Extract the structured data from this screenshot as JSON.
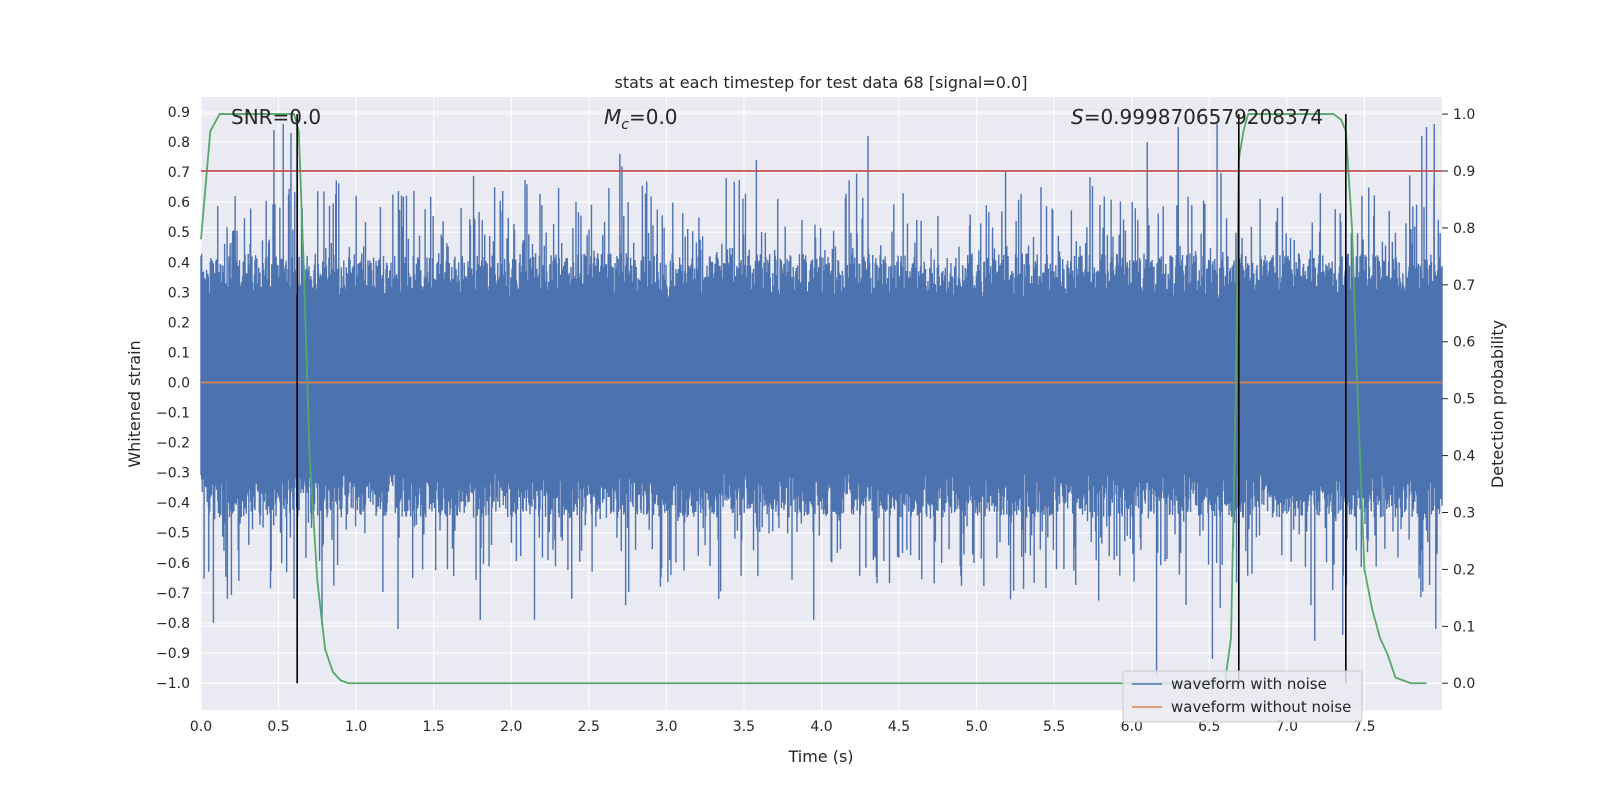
{
  "chart_data": {
    "type": "line",
    "title": "stats at each timestep for test data 68 [signal=0.0]",
    "xlabel": "Time (s)",
    "ylabel_left": "Whitened strain",
    "ylabel_right": "Detection probability",
    "xlim": [
      0.0,
      8.0
    ],
    "ylim_left": [
      -1.09,
      0.95
    ],
    "ylim_right": [
      -0.047,
      1.03
    ],
    "x_ticks": [
      "0.0",
      "0.5",
      "1.0",
      "1.5",
      "2.0",
      "2.5",
      "3.0",
      "3.5",
      "4.0",
      "4.5",
      "5.0",
      "5.5",
      "6.0",
      "6.5",
      "7.0",
      "7.5"
    ],
    "y_left_ticks": [
      "0.9",
      "0.8",
      "0.7",
      "0.6",
      "0.5",
      "0.4",
      "0.3",
      "0.2",
      "0.1",
      "0.0",
      "−0.1",
      "−0.2",
      "−0.3",
      "−0.4",
      "−0.5",
      "−0.6",
      "−0.7",
      "−0.8",
      "−0.9",
      "−1.0"
    ],
    "y_right_ticks": [
      "1.0",
      "0.9",
      "0.8",
      "0.7",
      "0.6",
      "0.5",
      "0.4",
      "0.3",
      "0.2",
      "0.1",
      "0.0"
    ],
    "grid": true,
    "legend": {
      "position": "lower-right",
      "entries": [
        {
          "label": "waveform with noise",
          "color": "#4c72b0"
        },
        {
          "label": "waveform without noise",
          "color": "#dd8452"
        }
      ]
    },
    "annotations": {
      "snr": "SNR=0.0",
      "mc_symbol": "M",
      "mc_sub": "c",
      "mc_value": "=0.0",
      "s_symbol": "S",
      "s_value": "=0.9998706579208374"
    },
    "series": [
      {
        "name": "waveform with noise",
        "color": "#4c72b0",
        "note": "dense whitened noise, core approx ±0.3 with peaks up to about 0.85 and troughs to about −0.92",
        "peaks": [
          {
            "x": 0.05,
            "y": -0.63
          },
          {
            "x": 0.08,
            "y": -0.8
          },
          {
            "x": 0.17,
            "y": -0.72
          },
          {
            "x": 0.47,
            "y": 0.84
          },
          {
            "x": 0.53,
            "y": 0.86
          },
          {
            "x": 0.58,
            "y": 0.83
          },
          {
            "x": 0.6,
            "y": -0.72
          },
          {
            "x": 0.78,
            "y": -0.81
          },
          {
            "x": 1.27,
            "y": -0.82
          },
          {
            "x": 1.8,
            "y": -0.79
          },
          {
            "x": 2.15,
            "y": -0.79
          },
          {
            "x": 2.39,
            "y": -0.72
          },
          {
            "x": 2.7,
            "y": 0.76
          },
          {
            "x": 3.58,
            "y": 0.74
          },
          {
            "x": 3.95,
            "y": -0.79
          },
          {
            "x": 4.3,
            "y": 0.82
          },
          {
            "x": 6.1,
            "y": 0.8
          },
          {
            "x": 6.16,
            "y": -0.98
          },
          {
            "x": 6.3,
            "y": 0.85
          },
          {
            "x": 6.35,
            "y": -0.74
          },
          {
            "x": 6.52,
            "y": -0.92
          },
          {
            "x": 6.55,
            "y": 0.86
          },
          {
            "x": 6.57,
            "y": -0.75
          },
          {
            "x": 7.18,
            "y": -0.86
          },
          {
            "x": 7.36,
            "y": -0.84
          },
          {
            "x": 7.87,
            "y": 0.82
          },
          {
            "x": 7.9,
            "y": 0.85
          },
          {
            "x": 7.95,
            "y": 0.86
          },
          {
            "x": 7.96,
            "y": -0.82
          }
        ]
      },
      {
        "name": "waveform without noise",
        "color": "#dd8452",
        "x": [
          0.0,
          8.0
        ],
        "y": [
          0.0,
          0.0
        ]
      },
      {
        "name": "detection probability",
        "color": "#55a868",
        "axis": "right",
        "x": [
          0.0,
          0.06,
          0.12,
          0.2,
          0.3,
          0.4,
          0.5,
          0.55,
          0.6,
          0.63,
          0.66,
          0.7,
          0.75,
          0.8,
          0.85,
          0.9,
          0.95,
          1.0,
          1.5,
          2.0,
          4.0,
          6.0,
          6.6,
          6.64,
          6.67,
          6.69,
          6.72,
          6.75,
          6.8,
          7.0,
          7.2,
          7.3,
          7.35,
          7.38,
          7.42,
          7.45,
          7.5,
          7.55,
          7.6,
          7.65,
          7.7,
          7.8,
          7.9
        ],
        "y": [
          0.78,
          0.97,
          1.0,
          1.0,
          1.0,
          1.0,
          1.0,
          1.0,
          1.0,
          0.97,
          0.75,
          0.4,
          0.18,
          0.06,
          0.02,
          0.005,
          0.0,
          0.0,
          0.0,
          0.0,
          0.0,
          0.0,
          0.0,
          0.08,
          0.5,
          0.92,
          0.97,
          1.0,
          1.0,
          1.0,
          1.0,
          1.0,
          0.99,
          0.97,
          0.8,
          0.55,
          0.2,
          0.13,
          0.08,
          0.05,
          0.01,
          0.0,
          0.0
        ]
      },
      {
        "name": "threshold",
        "color": "#c44e52",
        "axis": "right",
        "x": [
          0.0,
          8.0
        ],
        "y": [
          0.9,
          0.9
        ]
      }
    ],
    "vertical_lines": [
      {
        "x": 0.62,
        "color": "#000000"
      },
      {
        "x": 6.69,
        "color": "#000000"
      },
      {
        "x": 7.38,
        "color": "#000000"
      }
    ]
  }
}
